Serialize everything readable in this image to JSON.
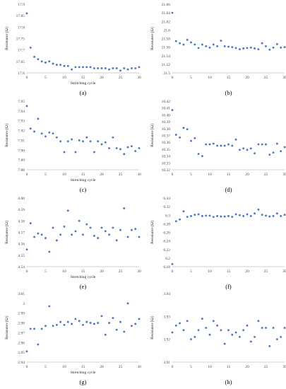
{
  "figure": {
    "panel_count": 8
  },
  "colors": {
    "marker": "#4472C4",
    "axis": "#BFBFBF",
    "text": "#222222"
  },
  "chart_data": [
    {
      "panel": "(a)",
      "type": "scatter",
      "xlabel": "Stretching cycle",
      "ylabel": "Resistance [Ω]",
      "xlim": [
        0,
        30
      ],
      "xticks": [
        0,
        5,
        10,
        15,
        20,
        25,
        30
      ],
      "ylim": [
        17.6,
        17.9
      ],
      "yticks": [
        17.6,
        17.65,
        17.7,
        17.75,
        17.8,
        17.85,
        17.9
      ],
      "ytick_labels": [
        "17.6",
        "17.65",
        "17.7",
        "17.75",
        "17.8",
        "17.85",
        "17.9"
      ],
      "grid": false,
      "legend": "none",
      "x": [
        0,
        1,
        2,
        3,
        4,
        5,
        6,
        7,
        8,
        9,
        10,
        11,
        12,
        13,
        14,
        15,
        16,
        17,
        18,
        19,
        20,
        21,
        22,
        23,
        24,
        25,
        26,
        27,
        28,
        29,
        30
      ],
      "y": [
        17.86,
        17.71,
        17.67,
        17.66,
        17.65,
        17.645,
        17.65,
        17.64,
        17.635,
        17.635,
        17.63,
        17.63,
        17.615,
        17.625,
        17.625,
        17.625,
        17.625,
        17.625,
        17.62,
        17.62,
        17.62,
        17.62,
        17.615,
        17.62,
        17.62,
        17.61,
        17.62,
        17.615,
        17.62,
        17.62,
        17.625
      ]
    },
    {
      "panel": "(b)",
      "type": "scatter",
      "xlabel": "",
      "ylabel": "Resistance [Ω]",
      "xlim": [
        0,
        30
      ],
      "xticks": [
        0,
        5,
        10,
        15,
        20,
        25,
        30
      ],
      "ylim": [
        21.5,
        21.66
      ],
      "yticks": [
        21.5,
        21.52,
        21.54,
        21.56,
        21.58,
        21.6,
        21.62,
        21.64,
        21.66
      ],
      "ytick_labels": [
        "21.5",
        "21.52",
        "21.54",
        "21.56",
        "21.58",
        "21.6",
        "21.62",
        "21.64",
        "21.66"
      ],
      "grid": false,
      "legend": "none",
      "x": [
        0,
        1,
        2,
        3,
        4,
        5,
        6,
        7,
        8,
        9,
        10,
        11,
        12,
        13,
        14,
        15,
        16,
        17,
        18,
        19,
        20,
        21,
        22,
        23,
        24,
        25,
        26,
        27,
        28,
        29,
        30
      ],
      "y": [
        21.64,
        21.574,
        21.569,
        21.566,
        21.577,
        21.571,
        21.566,
        21.558,
        21.566,
        21.562,
        21.559,
        21.566,
        21.562,
        21.575,
        21.562,
        21.561,
        21.56,
        21.558,
        21.555,
        21.557,
        21.558,
        21.559,
        21.557,
        21.555,
        21.569,
        21.562,
        21.554,
        21.559,
        21.567,
        21.559,
        21.56
      ]
    },
    {
      "panel": "(c)",
      "type": "scatter",
      "xlabel": "Stretching cycle",
      "ylabel": "Resistance [Ω]",
      "xlim": [
        0,
        30
      ],
      "xticks": [
        0,
        5,
        10,
        15,
        20,
        25,
        30
      ],
      "ylim": [
        7.88,
        7.95
      ],
      "yticks": [
        7.88,
        7.89,
        7.9,
        7.91,
        7.92,
        7.93,
        7.94,
        7.95
      ],
      "ytick_labels": [
        "7.88",
        "7.89",
        "7.90",
        "7.91",
        "7.92",
        "7.93",
        "7.94",
        "7.95"
      ],
      "grid": false,
      "legend": "none",
      "x": [
        0,
        1,
        2,
        3,
        4,
        5,
        6,
        7,
        8,
        9,
        10,
        11,
        12,
        13,
        14,
        15,
        16,
        17,
        18,
        19,
        20,
        21,
        22,
        23,
        24,
        25,
        26,
        27,
        28,
        29,
        30
      ],
      "y": [
        7.945,
        7.922,
        7.919,
        7.932,
        7.917,
        7.914,
        7.918,
        7.917,
        7.913,
        7.909,
        7.898,
        7.909,
        7.911,
        7.898,
        7.91,
        7.909,
        7.913,
        7.909,
        7.898,
        7.909,
        7.906,
        7.908,
        7.902,
        7.913,
        7.902,
        7.901,
        7.896,
        7.903,
        7.904,
        7.899,
        7.902
      ]
    },
    {
      "panel": "(d)",
      "type": "scatter",
      "xlabel": "",
      "ylabel": "Resistance [Ω]",
      "xlim": [
        0,
        30
      ],
      "xticks": [
        0,
        5,
        10,
        15,
        20,
        25,
        30
      ],
      "ylim": [
        10.32,
        10.42
      ],
      "yticks": [
        10.32,
        10.33,
        10.34,
        10.35,
        10.36,
        10.37,
        10.38,
        10.39,
        10.4,
        10.41,
        10.42
      ],
      "ytick_labels": [
        "10.32",
        "10.33",
        "10.34",
        "10.35",
        "10.36",
        "10.37",
        "10.38",
        "10.39",
        "10.40",
        "10.41",
        "10.42"
      ],
      "grid": false,
      "legend": "none",
      "x": [
        0,
        1,
        2,
        3,
        4,
        5,
        6,
        7,
        8,
        9,
        10,
        11,
        12,
        13,
        14,
        15,
        16,
        17,
        18,
        19,
        20,
        21,
        22,
        23,
        24,
        25,
        26,
        27,
        28,
        29,
        30
      ],
      "y": [
        10.407,
        10.371,
        10.367,
        10.381,
        10.379,
        10.362,
        10.366,
        10.343,
        10.34,
        10.357,
        10.357,
        10.358,
        10.355,
        10.355,
        10.355,
        10.357,
        10.355,
        10.364,
        10.349,
        10.351,
        10.349,
        10.351,
        10.344,
        10.357,
        10.357,
        10.357,
        10.342,
        10.345,
        10.358,
        10.347,
        10.353
      ]
    },
    {
      "panel": "(e)",
      "type": "scatter",
      "xlabel": "Stretching cycle",
      "ylabel": "Resistance [Ω]",
      "xlim": [
        0,
        30
      ],
      "xticks": [
        0,
        5,
        10,
        15,
        20,
        25,
        30
      ],
      "ylim": [
        4.54,
        4.6
      ],
      "yticks": [
        4.54,
        4.55,
        4.56,
        4.57,
        4.58,
        4.59,
        4.6
      ],
      "ytick_labels": [
        "4.54",
        "4.55",
        "4.56",
        "4.57",
        "4.58",
        "4.59",
        "4.60"
      ],
      "grid": false,
      "legend": "none",
      "x": [
        0,
        1,
        2,
        3,
        4,
        5,
        6,
        7,
        8,
        9,
        10,
        11,
        12,
        13,
        14,
        15,
        16,
        17,
        18,
        19,
        20,
        21,
        22,
        23,
        24,
        25,
        26,
        27,
        28,
        29,
        30
      ],
      "y": [
        4.555,
        4.578,
        4.566,
        4.569,
        4.568,
        4.565,
        4.553,
        4.574,
        4.563,
        4.568,
        4.575,
        4.589,
        4.568,
        4.571,
        4.58,
        4.568,
        4.577,
        4.574,
        4.567,
        4.565,
        4.574,
        4.571,
        4.568,
        4.574,
        4.563,
        4.572,
        4.591,
        4.566,
        4.572,
        4.573,
        4.566
      ]
    },
    {
      "panel": "(f)",
      "type": "scatter",
      "xlabel": "",
      "ylabel": "Resistance [Ω]",
      "xlim": [
        0,
        30
      ],
      "xticks": [
        0,
        5,
        10,
        15,
        20,
        25,
        30
      ],
      "ylim": [
        6.18,
        6.34
      ],
      "yticks": [
        6.18,
        6.2,
        6.22,
        6.24,
        6.26,
        6.28,
        6.3,
        6.32,
        6.34
      ],
      "ytick_labels": [
        "6.18",
        "6.2",
        "6.22",
        "6.24",
        "6.26",
        "6.28",
        "6.3",
        "6.32",
        "6.34"
      ],
      "grid": false,
      "legend": "none",
      "x": [
        0,
        1,
        2,
        3,
        4,
        5,
        6,
        7,
        8,
        9,
        10,
        11,
        12,
        13,
        14,
        15,
        16,
        17,
        18,
        19,
        20,
        21,
        22,
        23,
        24,
        25,
        26,
        27,
        28,
        29,
        30
      ],
      "y": [
        6.186,
        6.286,
        6.29,
        6.309,
        6.296,
        6.298,
        6.301,
        6.302,
        6.298,
        6.299,
        6.299,
        6.296,
        6.298,
        6.297,
        6.297,
        6.298,
        6.296,
        6.302,
        6.3,
        6.298,
        6.302,
        6.298,
        6.304,
        6.313,
        6.301,
        6.299,
        6.297,
        6.298,
        6.304,
        6.298,
        6.301
      ]
    },
    {
      "panel": "(g)",
      "type": "scatter",
      "xlabel": "Stretching cycle",
      "ylabel": "Resistance [Ω]",
      "xlim": [
        0,
        30
      ],
      "xticks": [
        0,
        5,
        10,
        15,
        20,
        25,
        30
      ],
      "ylim": [
        2.94,
        3.01
      ],
      "yticks": [
        2.94,
        2.95,
        2.96,
        2.97,
        2.98,
        2.99,
        3,
        3.01
      ],
      "ytick_labels": [
        "2.94",
        "2.95",
        "2.96",
        "2.97",
        "2.98",
        "2.99",
        "3",
        "3.01"
      ],
      "grid": false,
      "legend": "none",
      "x": [
        0,
        1,
        2,
        3,
        4,
        5,
        6,
        7,
        8,
        9,
        10,
        11,
        12,
        13,
        14,
        15,
        16,
        17,
        18,
        19,
        20,
        21,
        22,
        23,
        24,
        25,
        26,
        27,
        28,
        29,
        30
      ],
      "y": [
        2.951,
        2.974,
        2.974,
        2.958,
        2.974,
        2.977,
        2.997,
        2.977,
        2.978,
        2.981,
        2.978,
        2.981,
        2.979,
        2.984,
        2.982,
        2.978,
        2.981,
        2.98,
        2.979,
        2.98,
        2.987,
        2.968,
        2.98,
        2.985,
        2.973,
        2.981,
        2.971,
        3,
        2.977,
        2.979,
        2.984
      ]
    },
    {
      "panel": "(h)",
      "type": "scatter",
      "xlabel": "",
      "ylabel": "Resistance [Ω]",
      "xlim": [
        0,
        30
      ],
      "xticks": [
        0,
        5,
        10,
        15,
        20,
        25,
        30
      ],
      "ylim": [
        3.91,
        3.94
      ],
      "yticks": [
        3.91,
        3.92,
        3.93,
        3.94
      ],
      "ytick_labels": [
        "3.91",
        "3.92",
        "3.93",
        "3.94"
      ],
      "grid": false,
      "legend": "none",
      "x": [
        0,
        1,
        2,
        3,
        4,
        5,
        6,
        7,
        8,
        9,
        10,
        11,
        12,
        13,
        14,
        15,
        16,
        17,
        18,
        19,
        20,
        21,
        22,
        23,
        24,
        25,
        26,
        27,
        28,
        29,
        30
      ],
      "y": [
        3.923,
        3.926,
        3.927,
        3.924,
        3.928,
        3.92,
        3.921,
        3.924,
        3.929,
        3.925,
        3.922,
        3.928,
        3.926,
        3.924,
        3.918,
        3.924,
        3.922,
        3.923,
        3.921,
        3.924,
        3.926,
        3.919,
        3.921,
        3.928,
        3.925,
        3.925,
        3.917,
        3.925,
        3.92,
        3.921,
        3.925
      ]
    }
  ]
}
